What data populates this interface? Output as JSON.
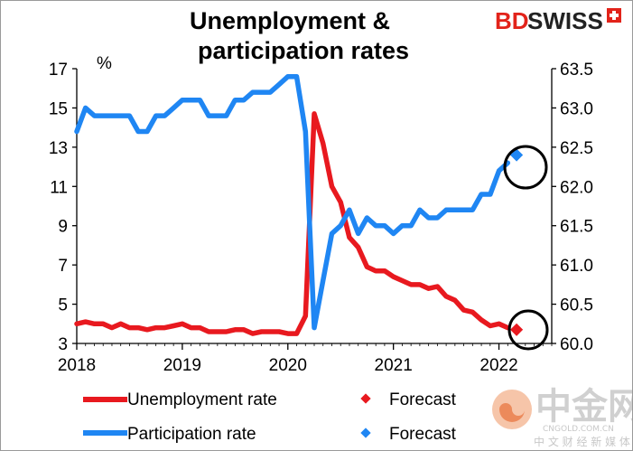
{
  "title_lines": [
    "Unemployment &",
    "participation rates"
  ],
  "brand": {
    "part1": "BD",
    "part2": "SWISS",
    "accent": "#e2231a"
  },
  "watermark": {
    "main": "中金网",
    "url": "CNGOLD.COM.CN",
    "tagline": "中 文 财 经 新 媒 体"
  },
  "colors": {
    "unemployment": "#e8191f",
    "participation": "#1f86f3",
    "axis": "#000000"
  },
  "chart_data": {
    "type": "line",
    "title": "Unemployment & participation rates",
    "left_axis": {
      "unit": "%",
      "min": 3,
      "max": 17,
      "ticks": [
        3,
        5,
        7,
        9,
        11,
        13,
        15,
        17
      ]
    },
    "right_axis": {
      "min": 60.0,
      "max": 63.5,
      "ticks": [
        "60.0",
        "60.5",
        "61.0",
        "61.5",
        "62.0",
        "62.5",
        "63.0",
        "63.5"
      ]
    },
    "x_axis": {
      "min": 2018.0,
      "max": 2022.5,
      "ticks": [
        2018,
        2019,
        2020,
        2021,
        2022
      ]
    },
    "legend_placement": "bottom",
    "series": [
      {
        "name": "Unemployment rate",
        "axis": "left",
        "x": [
          2018.0,
          2018.083,
          2018.167,
          2018.25,
          2018.333,
          2018.417,
          2018.5,
          2018.583,
          2018.667,
          2018.75,
          2018.833,
          2018.917,
          2019.0,
          2019.083,
          2019.167,
          2019.25,
          2019.333,
          2019.417,
          2019.5,
          2019.583,
          2019.667,
          2019.75,
          2019.833,
          2019.917,
          2020.0,
          2020.083,
          2020.167,
          2020.25,
          2020.333,
          2020.417,
          2020.5,
          2020.583,
          2020.667,
          2020.75,
          2020.833,
          2020.917,
          2021.0,
          2021.083,
          2021.167,
          2021.25,
          2021.333,
          2021.417,
          2021.5,
          2021.583,
          2021.667,
          2021.75,
          2021.833,
          2021.917,
          2022.0,
          2022.083
        ],
        "values": [
          4.0,
          4.1,
          4.0,
          4.0,
          3.8,
          4.0,
          3.8,
          3.8,
          3.7,
          3.8,
          3.8,
          3.9,
          4.0,
          3.8,
          3.8,
          3.6,
          3.6,
          3.6,
          3.7,
          3.7,
          3.5,
          3.6,
          3.6,
          3.6,
          3.5,
          3.5,
          4.4,
          14.7,
          13.2,
          11.0,
          10.2,
          8.4,
          7.9,
          6.9,
          6.7,
          6.7,
          6.4,
          6.2,
          6.0,
          6.0,
          5.8,
          5.9,
          5.4,
          5.2,
          4.7,
          4.6,
          4.2,
          3.9,
          4.0,
          3.8
        ]
      },
      {
        "name": "Forecast",
        "axis": "left",
        "style": "marker",
        "x": [
          2022.167
        ],
        "values": [
          3.7
        ]
      },
      {
        "name": "Participation rate",
        "axis": "right",
        "x": [
          2018.0,
          2018.083,
          2018.167,
          2018.25,
          2018.333,
          2018.417,
          2018.5,
          2018.583,
          2018.667,
          2018.75,
          2018.833,
          2018.917,
          2019.0,
          2019.083,
          2019.167,
          2019.25,
          2019.333,
          2019.417,
          2019.5,
          2019.583,
          2019.667,
          2019.75,
          2019.833,
          2019.917,
          2020.0,
          2020.083,
          2020.167,
          2020.25,
          2020.333,
          2020.417,
          2020.5,
          2020.583,
          2020.667,
          2020.75,
          2020.833,
          2020.917,
          2021.0,
          2021.083,
          2021.167,
          2021.25,
          2021.333,
          2021.417,
          2021.5,
          2021.583,
          2021.667,
          2021.75,
          2021.833,
          2021.917,
          2022.0,
          2022.083
        ],
        "values": [
          62.7,
          63.0,
          62.9,
          62.9,
          62.9,
          62.9,
          62.9,
          62.7,
          62.7,
          62.9,
          62.9,
          63.0,
          63.1,
          63.1,
          63.1,
          62.9,
          62.9,
          62.9,
          63.1,
          63.1,
          63.2,
          63.2,
          63.2,
          63.3,
          63.4,
          63.4,
          62.7,
          60.2,
          60.8,
          61.4,
          61.5,
          61.7,
          61.4,
          61.6,
          61.5,
          61.5,
          61.4,
          61.5,
          61.5,
          61.7,
          61.6,
          61.6,
          61.7,
          61.7,
          61.7,
          61.7,
          61.9,
          61.9,
          62.2,
          62.3
        ]
      },
      {
        "name": "Forecast",
        "axis": "right",
        "style": "marker",
        "x": [
          2022.167
        ],
        "values": [
          62.4
        ]
      }
    ],
    "annotations": [
      "circle around unemployment forecast",
      "circle around participation forecast"
    ]
  }
}
